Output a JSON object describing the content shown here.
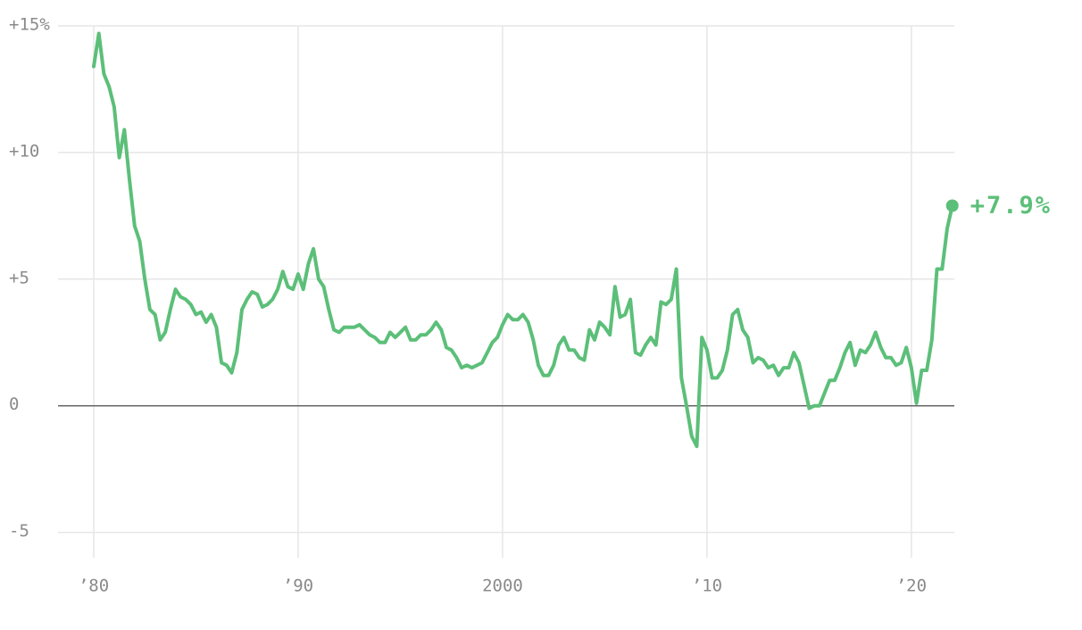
{
  "chart_data": {
    "type": "line",
    "x": [
      1980,
      1980.25,
      1980.5,
      1980.75,
      1981,
      1981.25,
      1981.5,
      1981.75,
      1982,
      1982.25,
      1982.5,
      1982.75,
      1983,
      1983.25,
      1983.5,
      1983.75,
      1984,
      1984.25,
      1984.5,
      1984.75,
      1985,
      1985.25,
      1985.5,
      1985.75,
      1986,
      1986.25,
      1986.5,
      1986.75,
      1987,
      1987.25,
      1987.5,
      1987.75,
      1988,
      1988.25,
      1988.5,
      1988.75,
      1989,
      1989.25,
      1989.5,
      1989.75,
      1990,
      1990.25,
      1990.5,
      1990.75,
      1991,
      1991.25,
      1991.5,
      1991.75,
      1992,
      1992.25,
      1992.5,
      1992.75,
      1993,
      1993.25,
      1993.5,
      1993.75,
      1994,
      1994.25,
      1994.5,
      1994.75,
      1995,
      1995.25,
      1995.5,
      1995.75,
      1996,
      1996.25,
      1996.5,
      1996.75,
      1997,
      1997.25,
      1997.5,
      1997.75,
      1998,
      1998.25,
      1998.5,
      1998.75,
      1999,
      1999.25,
      1999.5,
      1999.75,
      2000,
      2000.25,
      2000.5,
      2000.75,
      2001,
      2001.25,
      2001.5,
      2001.75,
      2002,
      2002.25,
      2002.5,
      2002.75,
      2003,
      2003.25,
      2003.5,
      2003.75,
      2004,
      2004.25,
      2004.5,
      2004.75,
      2005,
      2005.25,
      2005.5,
      2005.75,
      2006,
      2006.25,
      2006.5,
      2006.75,
      2007,
      2007.25,
      2007.5,
      2007.75,
      2008,
      2008.25,
      2008.5,
      2008.75,
      2009,
      2009.25,
      2009.5,
      2009.75,
      2010,
      2010.25,
      2010.5,
      2010.75,
      2011,
      2011.25,
      2011.5,
      2011.75,
      2012,
      2012.25,
      2012.5,
      2012.75,
      2013,
      2013.25,
      2013.5,
      2013.75,
      2014,
      2014.25,
      2014.5,
      2014.75,
      2015,
      2015.25,
      2015.5,
      2015.75,
      2016,
      2016.25,
      2016.5,
      2016.75,
      2017,
      2017.25,
      2017.5,
      2017.75,
      2018,
      2018.25,
      2018.5,
      2018.75,
      2019,
      2019.25,
      2019.5,
      2019.75,
      2020,
      2020.25,
      2020.5,
      2020.75,
      2021,
      2021.25,
      2021.5,
      2021.75,
      2022
    ],
    "values": [
      13.4,
      14.7,
      13.1,
      12.6,
      11.8,
      9.8,
      10.9,
      8.9,
      7.1,
      6.5,
      5.0,
      3.8,
      3.6,
      2.6,
      2.9,
      3.8,
      4.6,
      4.3,
      4.2,
      4.0,
      3.6,
      3.7,
      3.3,
      3.6,
      3.1,
      1.7,
      1.6,
      1.3,
      2.1,
      3.8,
      4.2,
      4.5,
      4.4,
      3.9,
      4.0,
      4.2,
      4.6,
      5.3,
      4.7,
      4.6,
      5.2,
      4.6,
      5.6,
      6.2,
      5.0,
      4.7,
      3.8,
      3.0,
      2.9,
      3.1,
      3.1,
      3.1,
      3.2,
      3.0,
      2.8,
      2.7,
      2.5,
      2.5,
      2.9,
      2.7,
      2.9,
      3.1,
      2.6,
      2.6,
      2.8,
      2.8,
      3.0,
      3.3,
      3.0,
      2.3,
      2.2,
      1.9,
      1.5,
      1.6,
      1.5,
      1.6,
      1.7,
      2.1,
      2.5,
      2.7,
      3.2,
      3.6,
      3.4,
      3.4,
      3.6,
      3.3,
      2.6,
      1.6,
      1.2,
      1.2,
      1.6,
      2.4,
      2.7,
      2.2,
      2.2,
      1.9,
      1.8,
      3.0,
      2.6,
      3.3,
      3.1,
      2.8,
      4.7,
      3.5,
      3.6,
      4.2,
      2.1,
      2.0,
      2.4,
      2.7,
      2.4,
      4.1,
      4.0,
      4.2,
      5.4,
      1.1,
      0.0,
      -1.2,
      -1.6,
      2.7,
      2.2,
      1.1,
      1.1,
      1.4,
      2.2,
      3.6,
      3.8,
      3.0,
      2.7,
      1.7,
      1.9,
      1.8,
      1.5,
      1.6,
      1.2,
      1.5,
      1.5,
      2.1,
      1.7,
      0.8,
      -0.1,
      0.0,
      0.0,
      0.5,
      1.0,
      1.0,
      1.5,
      2.1,
      2.5,
      1.6,
      2.2,
      2.1,
      2.4,
      2.9,
      2.3,
      1.9,
      1.9,
      1.6,
      1.7,
      2.3,
      1.5,
      0.1,
      1.4,
      1.4,
      2.6,
      5.4,
      5.4,
      7.0,
      7.9
    ],
    "value_labels": [
      null,
      null,
      null,
      null,
      null,
      null,
      null,
      null,
      null,
      null,
      null,
      null,
      null,
      null,
      null,
      null,
      null,
      null,
      null,
      null,
      null,
      null,
      null,
      null,
      null,
      null,
      null,
      null,
      null,
      null,
      null,
      null,
      null,
      null,
      null,
      null,
      null,
      null,
      null,
      null,
      null,
      null,
      null,
      null,
      null,
      null,
      null,
      null,
      null,
      null,
      null,
      null,
      null,
      null,
      null,
      null,
      null,
      null,
      null,
      null,
      null,
      null,
      null,
      null,
      null,
      null,
      null,
      null,
      null,
      null,
      null,
      null,
      null,
      null,
      null,
      null,
      null,
      null,
      null,
      null,
      null,
      null,
      null,
      null,
      null,
      null,
      null,
      null,
      null,
      null,
      null,
      null,
      null,
      null,
      null,
      null,
      null,
      null,
      null,
      null,
      null,
      null,
      null,
      null,
      null,
      null,
      null,
      null,
      null,
      null,
      null,
      null,
      null,
      null,
      null,
      null,
      null,
      null,
      null,
      null,
      null,
      null,
      null,
      null,
      null,
      null,
      null,
      null,
      null,
      null,
      null,
      null,
      null,
      null,
      null,
      null,
      null,
      null,
      null,
      null,
      null,
      null,
      null,
      null,
      null,
      null,
      null,
      null,
      null,
      null,
      null,
      null,
      null,
      null,
      null,
      null,
      null,
      null,
      null,
      null,
      null,
      null,
      null,
      null,
      null,
      null,
      null,
      null,
      "+7.9%"
    ],
    "color": "#5cbf79",
    "xlim": [
      1978.8,
      2022.1
    ],
    "ylim": [
      -6,
      15
    ],
    "xticks": [
      {
        "value": 1980,
        "label": "’80"
      },
      {
        "value": 1990,
        "label": "’90"
      },
      2000,
      {
        "value": 2010,
        "label": "’10"
      },
      {
        "value": 2020,
        "label": "’20"
      }
    ],
    "yticks": [
      {
        "value": 15,
        "label": "+15%"
      },
      {
        "value": 10,
        "label": "+10"
      },
      {
        "value": 5,
        "label": "+5"
      },
      0,
      -5
    ],
    "grid": true
  }
}
